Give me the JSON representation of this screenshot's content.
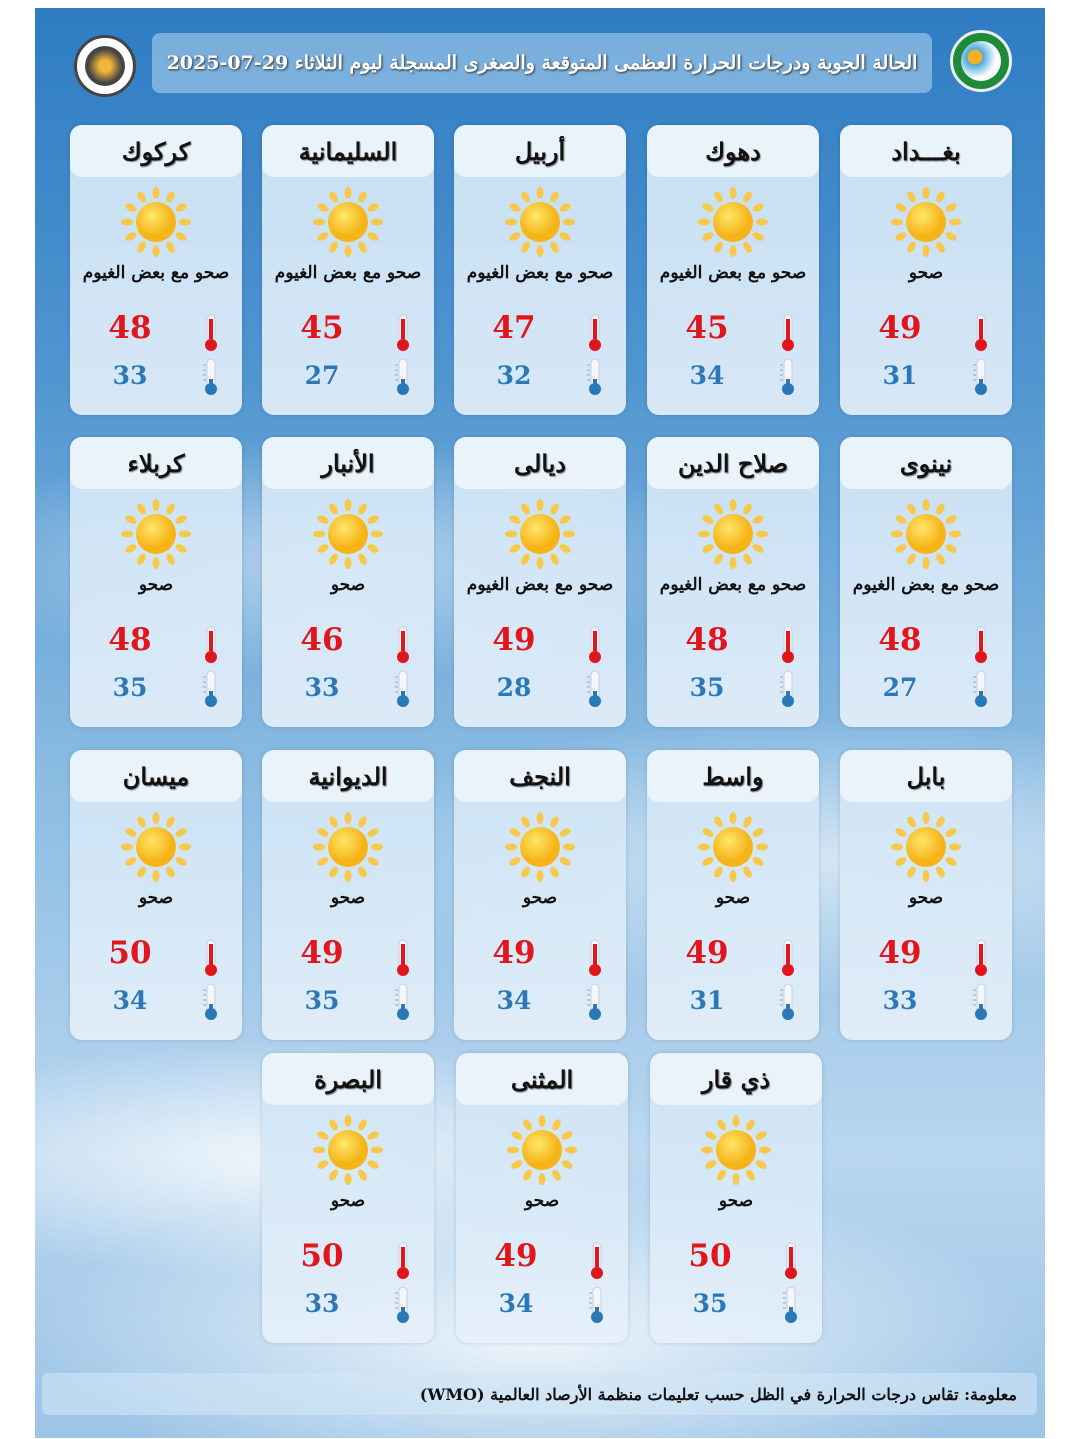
{
  "header": {
    "title": "الحالة الجوية ودرجات الحرارة العظمى المتوقعة والصغرى المسجلة ليوم الثلاثاء 29-07-2025"
  },
  "colors": {
    "max": "#e0161c",
    "min": "#2a78b8",
    "sun": "#f7c21b"
  },
  "cities": [
    {
      "name": "بغـــداد",
      "condition": "صحو",
      "icon": "sun-icon",
      "max": "49",
      "min": "31"
    },
    {
      "name": "دهوك",
      "condition": "صحو مع بعض الغيوم",
      "icon": "sun-icon",
      "max": "45",
      "min": "34"
    },
    {
      "name": "أربيل",
      "condition": "صحو مع بعض الغيوم",
      "icon": "sun-icon",
      "max": "47",
      "min": "32"
    },
    {
      "name": "السليمانية",
      "condition": "صحو مع بعض الغيوم",
      "icon": "sun-icon",
      "max": "45",
      "min": "27"
    },
    {
      "name": "كركوك",
      "condition": "صحو مع بعض الغيوم",
      "icon": "sun-icon",
      "max": "48",
      "min": "33"
    },
    {
      "name": "نينوى",
      "condition": "صحو مع بعض الغيوم",
      "icon": "sun-icon",
      "max": "48",
      "min": "27"
    },
    {
      "name": "صلاح الدين",
      "condition": "صحو مع بعض الغيوم",
      "icon": "sun-icon",
      "max": "48",
      "min": "35"
    },
    {
      "name": "ديالى",
      "condition": "صحو مع بعض الغيوم",
      "icon": "sun-icon",
      "max": "49",
      "min": "28"
    },
    {
      "name": "الأنبار",
      "condition": "صحو",
      "icon": "sun-icon",
      "max": "46",
      "min": "33"
    },
    {
      "name": "كربلاء",
      "condition": "صحو",
      "icon": "sun-icon",
      "max": "48",
      "min": "35"
    },
    {
      "name": "بابل",
      "condition": "صحو",
      "icon": "sun-icon",
      "max": "49",
      "min": "33"
    },
    {
      "name": "واسط",
      "condition": "صحو",
      "icon": "sun-icon",
      "max": "49",
      "min": "31"
    },
    {
      "name": "النجف",
      "condition": "صحو",
      "icon": "sun-icon",
      "max": "49",
      "min": "34"
    },
    {
      "name": "الديوانية",
      "condition": "صحو",
      "icon": "sun-icon",
      "max": "49",
      "min": "35"
    },
    {
      "name": "ميسان",
      "condition": "صحو",
      "icon": "sun-icon",
      "max": "50",
      "min": "34"
    },
    {
      "name": "ذي قار",
      "condition": "صحو",
      "icon": "sun-icon",
      "max": "50",
      "min": "35"
    },
    {
      "name": "المثنى",
      "condition": "صحو",
      "icon": "sun-icon",
      "max": "49",
      "min": "34"
    },
    {
      "name": "البصرة",
      "condition": "صحو",
      "icon": "sun-icon",
      "max": "50",
      "min": "33"
    }
  ],
  "footer": {
    "note": "معلومة: تقاس درجات الحرارة في الظل حسب تعليمات منظمة الأرصاد العالمية (WMO)"
  }
}
